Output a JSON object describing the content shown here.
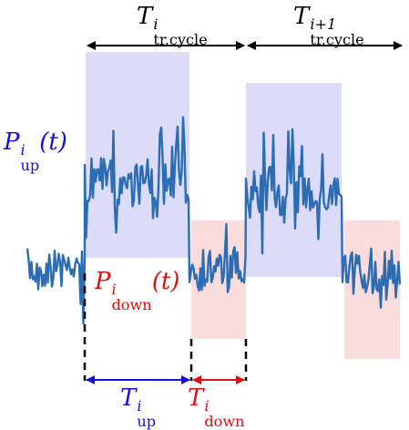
{
  "labels": {
    "t_cycle_i": {
      "base": "T",
      "sup": "i",
      "sub": "tr,cycle"
    },
    "t_cycle_i1": {
      "base": "T",
      "sup": "i+1",
      "sub": "tr,cycle"
    },
    "p_up": {
      "base": "P",
      "sup": "i",
      "sub": "up",
      "arg": "(t)"
    },
    "p_down": {
      "base": "P",
      "sup": "i",
      "sub": "down",
      "arg": "(t)"
    },
    "t_up": {
      "base": "T",
      "sup": "i",
      "sub": "up"
    },
    "t_down": {
      "base": "T",
      "sup": "i",
      "sub": "down"
    }
  },
  "colors": {
    "signal": "#2a6db4",
    "up_region": "#dcdcfa",
    "down_region": "#fadcdc",
    "up_text": "#1010e0",
    "down_text": "#e01010",
    "arrow": "#000000"
  }
}
